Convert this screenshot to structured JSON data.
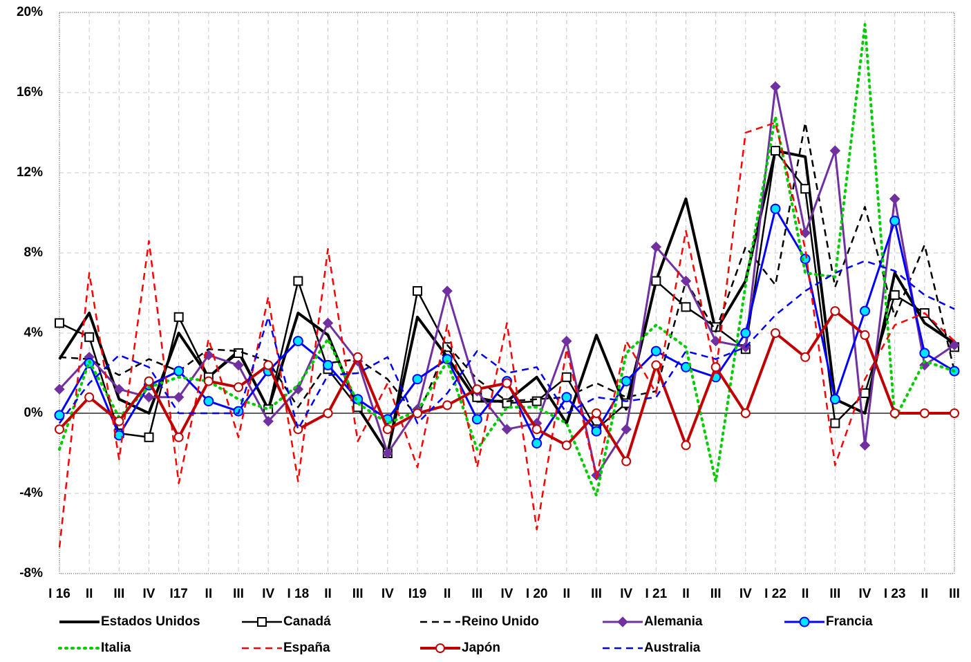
{
  "chart_data": {
    "type": "line",
    "categories": [
      "I 16",
      "II",
      "III",
      "IV",
      "I17",
      "II",
      "III",
      "IV",
      "I 18",
      "II",
      "III",
      "IV",
      "I19",
      "II",
      "III",
      "IV",
      "I 20",
      "II",
      "III",
      "IV",
      "I 21",
      "II",
      "III",
      "IV",
      "I 22",
      "II",
      "III",
      "IV",
      "I 23",
      "II",
      "III"
    ],
    "ylim": [
      -8,
      20
    ],
    "yticks": [
      {
        "value": -8,
        "label": "-8%"
      },
      {
        "value": -4,
        "label": "-4%"
      },
      {
        "value": 0,
        "label": "0%"
      },
      {
        "value": 4,
        "label": "4%"
      },
      {
        "value": 8,
        "label": "8%"
      },
      {
        "value": 12,
        "label": "12%"
      },
      {
        "value": 16,
        "label": "16%"
      },
      {
        "value": 20,
        "label": "20%"
      }
    ],
    "grid": true,
    "series": [
      {
        "name": "Estados Unidos",
        "color": "#000000",
        "width": 4,
        "dash": "solid",
        "marker": "none",
        "values": [
          2.7,
          5.0,
          0.7,
          0.0,
          4.0,
          1.8,
          3.1,
          0.2,
          5.0,
          3.9,
          0.3,
          -2.0,
          4.8,
          2.8,
          0.6,
          0.6,
          1.8,
          -0.5,
          3.9,
          0.2,
          6.6,
          10.7,
          4.1,
          6.6,
          13.1,
          12.8,
          0.7,
          0.0,
          7.0,
          4.5,
          3.5
        ]
      },
      {
        "name": "Canadá",
        "color": "#000000",
        "width": 2.5,
        "dash": "solid",
        "marker": "square",
        "values": [
          4.5,
          3.8,
          -1.0,
          -1.2,
          4.8,
          1.8,
          3.0,
          0.2,
          6.6,
          2.2,
          0.3,
          -2.0,
          6.1,
          3.3,
          0.8,
          0.5,
          0.6,
          1.8,
          -0.8,
          0.5,
          6.6,
          5.3,
          4.3,
          3.2,
          13.1,
          11.2,
          -0.5,
          1.0,
          5.9,
          5.0,
          3.3
        ]
      },
      {
        "name": "Reino Unido",
        "color": "#000000",
        "width": 2.5,
        "dash": "dashed",
        "marker": "none",
        "values": [
          2.8,
          2.7,
          1.9,
          2.7,
          2.1,
          3.2,
          3.1,
          2.6,
          0.3,
          2.5,
          2.7,
          1.7,
          -0.2,
          3.4,
          1.7,
          0.6,
          0.7,
          0.8,
          1.5,
          0.8,
          1.1,
          6.6,
          4.1,
          8.3,
          6.4,
          14.5,
          6.3,
          10.3,
          4.8,
          8.4,
          2.1
        ]
      },
      {
        "name": "Alemania",
        "color": "#7030a0",
        "width": 3,
        "dash": "solid",
        "marker": "diamond",
        "values": [
          1.2,
          2.8,
          1.2,
          0.8,
          0.8,
          2.9,
          2.4,
          -0.4,
          1.2,
          4.5,
          2.6,
          -2.0,
          0.2,
          6.1,
          1.1,
          -0.8,
          -0.5,
          3.6,
          -3.1,
          -0.8,
          8.3,
          6.6,
          3.6,
          3.3,
          16.3,
          9.0,
          13.1,
          -1.6,
          10.7,
          2.4,
          3.4
        ]
      },
      {
        "name": "Francia",
        "color": "#0000ff",
        "width": 3,
        "dash": "solid",
        "marker": "circle-cyan",
        "values": [
          -0.1,
          2.5,
          -1.1,
          1.4,
          2.1,
          0.6,
          0.1,
          2.1,
          3.6,
          2.4,
          0.7,
          -0.3,
          1.7,
          2.7,
          -0.3,
          1.6,
          -1.5,
          0.8,
          -0.9,
          1.6,
          3.1,
          2.3,
          1.8,
          4.0,
          10.2,
          7.7,
          0.7,
          5.1,
          9.6,
          3.0,
          2.1
        ]
      },
      {
        "name": "Italia",
        "color": "#00cc00",
        "width": 4,
        "dash": "dotted",
        "marker": "none",
        "values": [
          -1.8,
          2.6,
          -0.2,
          1.3,
          1.8,
          1.6,
          0.7,
          0.2,
          1.4,
          3.7,
          0.5,
          -0.5,
          0.1,
          2.6,
          -1.8,
          0.3,
          0.3,
          -0.5,
          -4.1,
          3.0,
          4.4,
          3.3,
          -3.4,
          6.4,
          14.8,
          7.0,
          6.8,
          19.4,
          -0.3,
          2.6,
          2.1
        ]
      },
      {
        "name": "España",
        "color": "#ff0000",
        "width": 2.5,
        "dash": "dashed",
        "marker": "none",
        "values": [
          -6.7,
          7.0,
          -2.3,
          8.6,
          -3.5,
          3.7,
          -1.2,
          5.8,
          -3.4,
          8.2,
          -1.4,
          1.5,
          -2.7,
          4.4,
          -2.7,
          4.5,
          -5.8,
          3.2,
          -3.2,
          3.6,
          1.0,
          9.1,
          2.0,
          14.0,
          14.5,
          8.2,
          -2.6,
          1.7,
          4.4,
          5.0,
          3.6
        ]
      },
      {
        "name": "Japón",
        "color": "#c00000",
        "width": 4,
        "dash": "solid",
        "marker": "circle-white",
        "values": [
          -0.8,
          0.8,
          -0.4,
          1.6,
          -1.2,
          1.6,
          1.3,
          2.4,
          -0.8,
          0.0,
          2.8,
          -0.8,
          0.0,
          0.4,
          1.2,
          1.5,
          -0.8,
          -1.6,
          0.0,
          -2.4,
          2.4,
          -1.6,
          2.3,
          0.0,
          4.0,
          2.8,
          5.1,
          3.9,
          0.0,
          0.0,
          0.0
        ]
      },
      {
        "name": "Australia",
        "color": "#0000ff",
        "width": 2.5,
        "dash": "dashed",
        "marker": "none",
        "values": [
          -0.5,
          1.5,
          2.9,
          2.3,
          0.0,
          0.0,
          0.0,
          4.8,
          -0.8,
          1.9,
          2.0,
          2.8,
          -0.5,
          1.0,
          3.1,
          2.0,
          2.3,
          0.0,
          0.8,
          0.6,
          0.8,
          3.1,
          2.7,
          3.3,
          4.9,
          6.1,
          7.0,
          7.6,
          7.1,
          5.9,
          5.2
        ]
      }
    ]
  }
}
